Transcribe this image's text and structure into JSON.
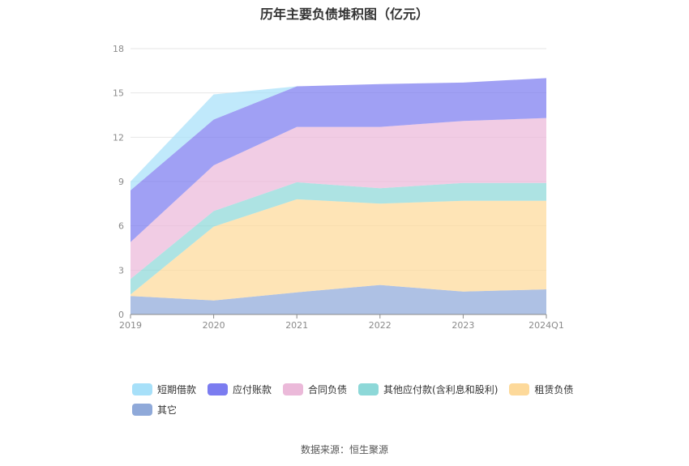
{
  "chart_data": {
    "type": "area",
    "stacked": true,
    "title": "历年主要负债堆积图（亿元）",
    "categories": [
      "2019",
      "2020",
      "2021",
      "2022",
      "2023",
      "2024Q1"
    ],
    "ylim": [
      0,
      18
    ],
    "yticks": [
      0,
      3,
      6,
      9,
      12,
      15,
      18
    ],
    "grid": true,
    "legend_position": "bottom",
    "series": [
      {
        "name": "其它",
        "color": "#8fa9d9",
        "values": [
          1.25,
          0.95,
          1.5,
          2.0,
          1.55,
          1.7
        ]
      },
      {
        "name": "租赁负债",
        "color": "#fdd99a",
        "values": [
          0.1,
          5.0,
          6.3,
          5.5,
          6.15,
          6.0
        ]
      },
      {
        "name": "其他应付款(含利息和股利)",
        "color": "#8dd8d8",
        "values": [
          1.05,
          1.05,
          1.15,
          1.05,
          1.2,
          1.2
        ]
      },
      {
        "name": "合同负债",
        "color": "#ebb9d9",
        "values": [
          2.5,
          3.1,
          3.75,
          4.15,
          4.2,
          4.4
        ]
      },
      {
        "name": "应付账款",
        "color": "#7b7cf0",
        "values": [
          3.5,
          3.1,
          2.75,
          2.9,
          2.6,
          2.7
        ]
      },
      {
        "name": "短期借款",
        "color": "#a7e0f9",
        "values": [
          0.6,
          1.7,
          0.0,
          0.0,
          0.0,
          0.0
        ]
      }
    ],
    "legend_order": [
      "短期借款",
      "应付账款",
      "合同负债",
      "其他应付款(含利息和股利)",
      "租赁负债",
      "其它"
    ]
  },
  "source_note": "数据来源：恒生聚源"
}
